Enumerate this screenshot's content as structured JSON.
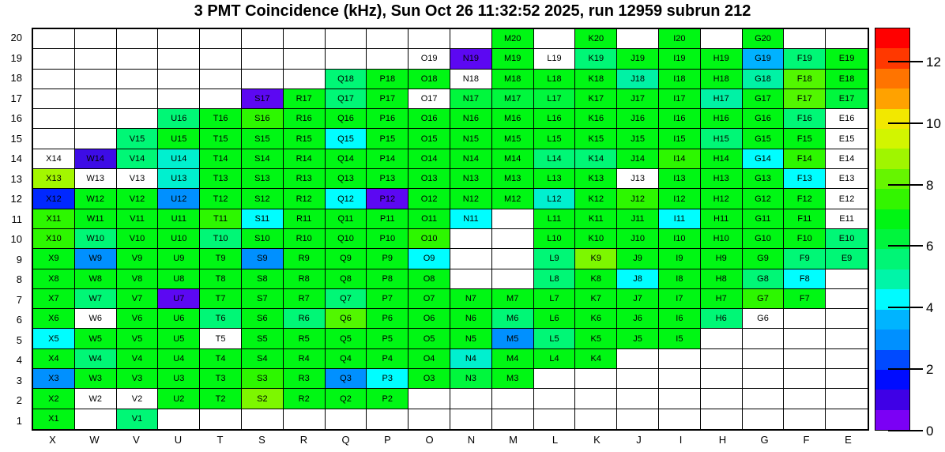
{
  "title": "3 PMT Coincidence (kHz), Sun Oct 26 11:32:52 2025, run 12959 subrun 212",
  "x_axis": {
    "labels": [
      "X",
      "W",
      "V",
      "U",
      "T",
      "S",
      "R",
      "Q",
      "P",
      "O",
      "N",
      "M",
      "L",
      "K",
      "J",
      "I",
      "H",
      "G",
      "F",
      "E"
    ]
  },
  "y_axis": {
    "labels": [
      "20",
      "19",
      "18",
      "17",
      "16",
      "15",
      "14",
      "13",
      "12",
      "11",
      "10",
      "9",
      "8",
      "7",
      "6",
      "5",
      "4",
      "3",
      "2",
      "1"
    ]
  },
  "colorbar": {
    "min": 0,
    "max": 13.1,
    "ticks": [
      {
        "label": "12",
        "value": 12
      },
      {
        "label": "10",
        "value": 10
      },
      {
        "label": "8",
        "value": 8
      },
      {
        "label": "6",
        "value": 6
      },
      {
        "label": "4",
        "value": 4
      },
      {
        "label": "2",
        "value": 2
      },
      {
        "label": "0",
        "value": 0
      }
    ],
    "bands_top_to_bottom": [
      "#ff0000",
      "#ff3800",
      "#ff7400",
      "#ffa200",
      "#f2e800",
      "#d2f500",
      "#a0f500",
      "#66f500",
      "#33f500",
      "#00f514",
      "#00f53d",
      "#00f576",
      "#00f5a8",
      "#00fbff",
      "#00b4ff",
      "#0090ff",
      "#004aff",
      "#000cff",
      "#3f00e6",
      "#7b00f5"
    ]
  },
  "chart_data": {
    "type": "heatmap",
    "title": "3 PMT Coincidence (kHz), Sun Oct 26 11:32:52 2025, run 12959 subrun 212",
    "unit": "kHz",
    "columns": [
      "X",
      "W",
      "V",
      "U",
      "T",
      "S",
      "R",
      "Q",
      "P",
      "O",
      "N",
      "M",
      "L",
      "K",
      "J",
      "I",
      "H",
      "G",
      "F",
      "E"
    ],
    "rows": [
      20,
      19,
      18,
      17,
      16,
      15,
      14,
      13,
      12,
      11,
      10,
      9,
      8,
      7,
      6,
      5,
      4,
      3,
      2,
      1
    ],
    "value_range": [
      0,
      13.1
    ],
    "palette": {
      "g": {
        "color": "#00f714",
        "value": 6.9
      },
      "g2": {
        "color": "#2df700",
        "value": 7.5
      },
      "bg": {
        "color": "#52f700",
        "value": 8.0
      },
      "ch": {
        "color": "#7df700",
        "value": 8.5
      },
      "xc": {
        "color": "#a3f700",
        "value": 8.9
      },
      "sg2": {
        "color": "#00f73d",
        "value": 6.2
      },
      "sg": {
        "color": "#00f776",
        "value": 5.6
      },
      "aq": {
        "color": "#00f2a5",
        "value": 4.9
      },
      "tq": {
        "color": "#00f0cf",
        "value": 4.6
      },
      "cy": {
        "color": "#00feff",
        "value": 4.2
      },
      "sky": {
        "color": "#00b2ff",
        "value": 3.4
      },
      "db": {
        "color": "#0090ff",
        "value": 2.9
      },
      "bl": {
        "color": "#0028ff",
        "value": 2.1
      },
      "dv": {
        "color": "#3d0ce6",
        "value": 1.0
      },
      "vi": {
        "color": "#5c08f2",
        "value": 0.5
      },
      "wh": {
        "color": "#ffffff",
        "value": null
      }
    },
    "cells": {
      "20": {
        "M": "g",
        "K": "g",
        "I": "g",
        "G": "g"
      },
      "19": {
        "O": "wh",
        "N": "vi",
        "M": "g",
        "L": "wh",
        "K": "sg",
        "J": "g",
        "I": "g",
        "H": "g",
        "G": "sky",
        "F": "sg",
        "E": "g"
      },
      "18": {
        "Q": "sg",
        "P": "g",
        "O": "g",
        "N": "wh",
        "M": "g",
        "L": "g",
        "K": "g",
        "J": "aq",
        "I": "g",
        "H": "g",
        "G": "aq",
        "F": "bg",
        "E": "g"
      },
      "17": {
        "S": "vi",
        "R": "g",
        "Q": "sg",
        "P": "g",
        "O": "wh",
        "N": "sg2",
        "M": "sg2",
        "L": "sg2",
        "K": "g",
        "J": "g",
        "I": "g",
        "H": "aq",
        "G": "g",
        "F": "bg",
        "E": "sg2"
      },
      "16": {
        "U": "sg",
        "T": "g",
        "S": "g2",
        "R": "g",
        "Q": "g",
        "P": "g",
        "O": "g",
        "N": "g",
        "M": "g",
        "L": "g",
        "K": "g",
        "J": "g",
        "I": "g",
        "H": "g",
        "G": "g",
        "F": "sg",
        "E": "wh"
      },
      "15": {
        "V": "sg",
        "U": "g",
        "T": "g",
        "S": "g",
        "R": "g",
        "Q": "cy",
        "P": "g",
        "O": "g",
        "N": "g",
        "M": "g",
        "L": "g",
        "K": "g",
        "J": "g",
        "I": "g",
        "H": "sg",
        "G": "g",
        "F": "g",
        "E": "wh"
      },
      "14": {
        "X": "wh",
        "W": "dv",
        "V": "sg",
        "U": "tq",
        "T": "g",
        "S": "g",
        "R": "g",
        "Q": "g",
        "P": "g",
        "O": "g",
        "N": "g",
        "M": "g",
        "L": "sg",
        "K": "sg",
        "J": "g",
        "I": "g2",
        "H": "g",
        "G": "cy",
        "F": "g2",
        "E": "wh"
      },
      "13": {
        "X": "xc",
        "W": "wh",
        "V": "wh",
        "U": "tq",
        "T": "g",
        "S": "g",
        "R": "g",
        "Q": "g",
        "P": "g",
        "O": "g",
        "N": "g",
        "M": "g",
        "L": "g",
        "K": "g",
        "J": "wh",
        "I": "g",
        "H": "g",
        "G": "g",
        "F": "cy",
        "E": "wh"
      },
      "12": {
        "X": "bl",
        "W": "g",
        "V": "g",
        "U": "db",
        "T": "g",
        "S": "g",
        "R": "g",
        "Q": "cy",
        "P": "vi",
        "O": "g",
        "N": "g",
        "M": "g",
        "L": "tq",
        "K": "g",
        "J": "g2",
        "I": "g",
        "H": "g",
        "G": "g",
        "F": "g",
        "E": "wh"
      },
      "11": {
        "X": "g2",
        "W": "g",
        "V": "g",
        "U": "g",
        "T": "g2",
        "S": "cy",
        "R": "g",
        "Q": "g",
        "P": "g",
        "O": "g",
        "N": "cy",
        "L": "g",
        "K": "g",
        "J": "g",
        "I": "cy",
        "H": "g",
        "G": "g",
        "F": "g",
        "E": "wh"
      },
      "10": {
        "X": "g2",
        "W": "sg",
        "V": "g",
        "U": "g",
        "T": "sg",
        "S": "g",
        "R": "g",
        "Q": "g",
        "P": "g",
        "O": "g2",
        "L": "g",
        "K": "g",
        "J": "g",
        "I": "g",
        "H": "g",
        "G": "g",
        "F": "g",
        "E": "sg"
      },
      "9": {
        "X": "g",
        "W": "db",
        "V": "g",
        "U": "g",
        "T": "g",
        "S": "db",
        "R": "g",
        "Q": "g",
        "P": "g",
        "O": "cy",
        "L": "sg",
        "K": "ch",
        "J": "g",
        "I": "g",
        "H": "g",
        "G": "g",
        "F": "sg",
        "E": "sg"
      },
      "8": {
        "X": "g",
        "W": "g",
        "V": "g",
        "U": "g",
        "T": "g",
        "S": "g",
        "R": "g",
        "Q": "g",
        "P": "g",
        "O": "g",
        "L": "sg",
        "K": "g",
        "J": "cy",
        "I": "g",
        "H": "g",
        "G": "sg",
        "F": "cy"
      },
      "7": {
        "X": "g",
        "W": "sg",
        "V": "g",
        "U": "vi",
        "T": "g",
        "S": "g",
        "R": "g",
        "Q": "sg",
        "P": "g",
        "O": "g",
        "N": "g",
        "M": "g",
        "L": "g",
        "K": "g",
        "J": "g",
        "I": "g",
        "H": "g",
        "G": "g2",
        "F": "g"
      },
      "6": {
        "X": "g",
        "W": "wh",
        "V": "g",
        "U": "g",
        "T": "sg",
        "S": "g",
        "R": "sg",
        "Q": "bg",
        "P": "g",
        "O": "g",
        "N": "g",
        "M": "sg",
        "L": "g",
        "K": "g",
        "J": "g",
        "I": "g",
        "H": "sg",
        "G": "wh"
      },
      "5": {
        "X": "cy",
        "W": "g",
        "V": "g",
        "U": "g",
        "T": "wh",
        "S": "g",
        "R": "g",
        "Q": "g",
        "P": "g",
        "O": "g",
        "N": "g",
        "M": "db",
        "L": "sg",
        "K": "g",
        "J": "g",
        "I": "g"
      },
      "4": {
        "X": "g",
        "W": "sg",
        "V": "g",
        "U": "g",
        "T": "g",
        "S": "g",
        "R": "g",
        "Q": "g",
        "P": "g",
        "O": "g",
        "N": "tq",
        "M": "g",
        "L": "g",
        "K": "g"
      },
      "3": {
        "X": "db",
        "W": "g",
        "V": "g",
        "U": "g",
        "T": "g",
        "S": "g2",
        "R": "g",
        "Q": "db",
        "P": "cy",
        "O": "g",
        "N": "sg2",
        "M": "g"
      },
      "2": {
        "X": "g",
        "W": "wh",
        "V": "wh",
        "U": "g",
        "T": "g",
        "S": "ch",
        "R": "g",
        "Q": "g",
        "P": "g"
      },
      "1": {
        "X": "g",
        "V": "sg"
      }
    }
  }
}
